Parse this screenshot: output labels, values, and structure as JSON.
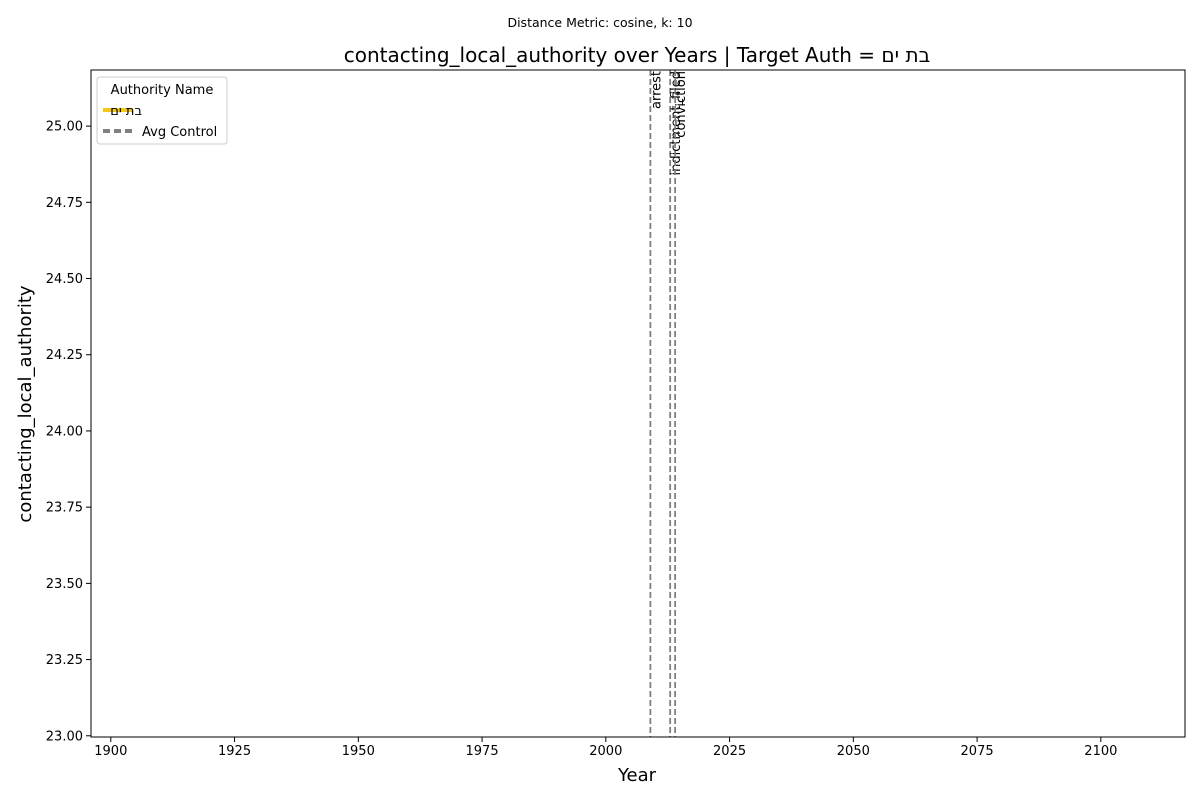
{
  "chart_data": {
    "type": "line",
    "suptitle": "Distance Metric: cosine, k: 10",
    "title": "contacting_local_authority over Years | Target Auth = בת ים",
    "xlabel": "Year",
    "ylabel": "contacting_local_authority",
    "xlim": [
      1896,
      2117
    ],
    "ylim": [
      22.996,
      25.184
    ],
    "xticks": [
      1900,
      1925,
      1950,
      1975,
      2000,
      2025,
      2050,
      2075,
      2100
    ],
    "xtick_labels": [
      "1900",
      "1925",
      "1950",
      "1975",
      "2000",
      "2025",
      "2050",
      "2075",
      "2100"
    ],
    "yticks": [
      23.0,
      23.25,
      23.5,
      23.75,
      24.0,
      24.25,
      24.5,
      24.75,
      25.0
    ],
    "ytick_labels": [
      "23.00",
      "23.25",
      "23.50",
      "23.75",
      "24.00",
      "24.25",
      "24.50",
      "24.75",
      "25.00"
    ],
    "grid": false,
    "legend": {
      "title": "Authority Name",
      "placement": "top-left",
      "entries": [
        {
          "label": "בת ים",
          "color": "#f2c91a",
          "style": "solid"
        },
        {
          "label": "Avg Control",
          "color": "#808080",
          "style": "dashed"
        }
      ]
    },
    "series": [
      {
        "name": "בת ים",
        "color": "#f2c91a",
        "x": [],
        "y": []
      },
      {
        "name": "Avg Control",
        "color": "#808080",
        "x": [],
        "y": []
      }
    ],
    "events": [
      {
        "label": "arrest",
        "x": 2009
      },
      {
        "label": "indictment_filed",
        "x": 2013
      },
      {
        "label": "conviction",
        "x": 2014
      }
    ],
    "event_line_color": "#808080"
  }
}
